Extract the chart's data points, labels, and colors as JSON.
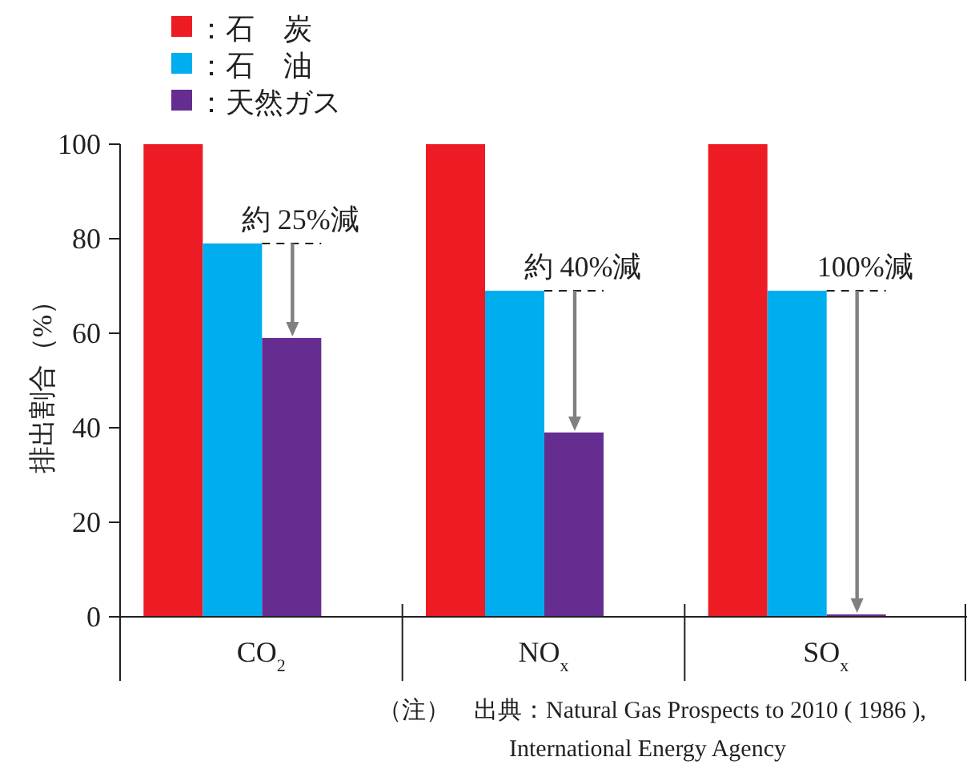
{
  "chart_data": {
    "type": "bar",
    "ylabel": "排出割合（%）",
    "categories": [
      "CO$_{2}$",
      "NO$_{x}$",
      "SO$_{x}$"
    ],
    "series": [
      {
        "name": "：石　炭",
        "color": "#ed1c24",
        "values": [
          100,
          100,
          100
        ]
      },
      {
        "name": "：石　油",
        "color": "#00aeef",
        "values": [
          79,
          69,
          69
        ]
      },
      {
        "name": "：天然ガス",
        "color": "#662d91",
        "values": [
          59,
          39,
          0.5
        ]
      }
    ],
    "ylim": [
      0,
      100
    ],
    "yticks": [
      0,
      20,
      40,
      60,
      80,
      100
    ],
    "legend": "top left",
    "grid": false,
    "annotations": [
      "約 25%減",
      "約 40%減",
      "100%減",
      "（注）　出典：Natural Gas Prospects to 2010 ( 1986 ),",
      "International Energy Agency"
    ]
  }
}
